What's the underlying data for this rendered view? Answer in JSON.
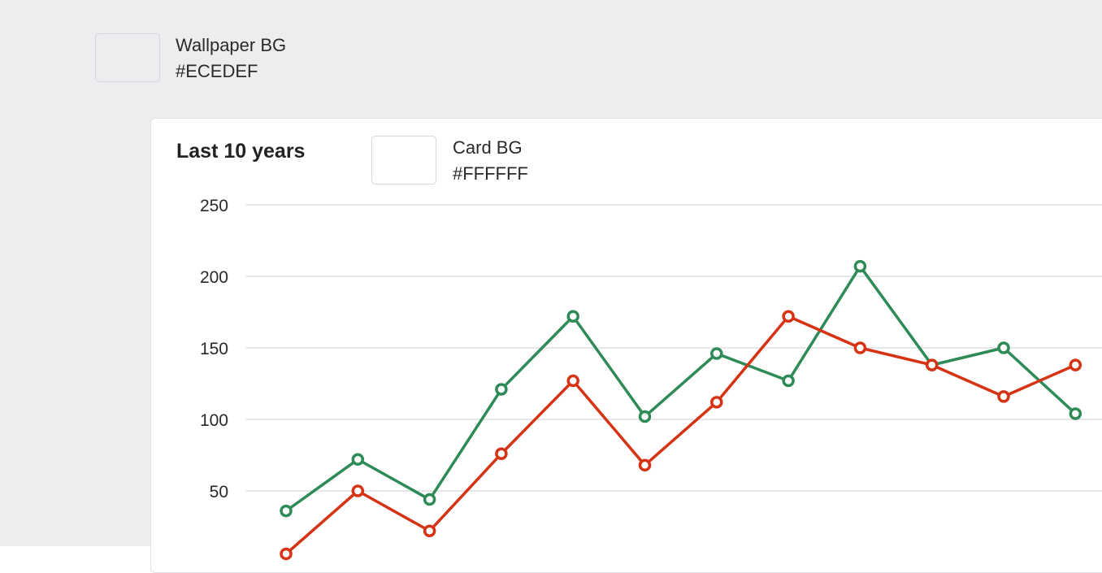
{
  "colors": {
    "wallpaper": "#ECEDEF",
    "card": "#FFFFFF",
    "gridline": "#DEDFE2",
    "series_green": "#2E8B57",
    "series_red": "#D53314"
  },
  "wallpaper_swatch": {
    "label": "Wallpaper BG",
    "hex": "#ECEDEF"
  },
  "card": {
    "title": "Last 10 years",
    "swatch": {
      "label": "Card BG",
      "hex": "#FFFFFF"
    }
  },
  "chart_data": {
    "type": "line",
    "title": "Last 10 years",
    "xlabel": "",
    "ylabel": "",
    "ylim": [
      0,
      250
    ],
    "yticks": [
      50,
      100,
      150,
      200,
      250
    ],
    "grid": true,
    "x": [
      1,
      2,
      3,
      4,
      5,
      6,
      7,
      8,
      9,
      10,
      11,
      12
    ],
    "series": [
      {
        "color": "#2E8B57",
        "values": [
          36,
          72,
          44,
          121,
          172,
          102,
          146,
          127,
          207,
          138,
          150,
          104
        ]
      },
      {
        "color": "#D53314",
        "values": [
          6,
          50,
          22,
          76,
          127,
          68,
          112,
          172,
          150,
          138,
          116,
          138
        ]
      }
    ]
  }
}
